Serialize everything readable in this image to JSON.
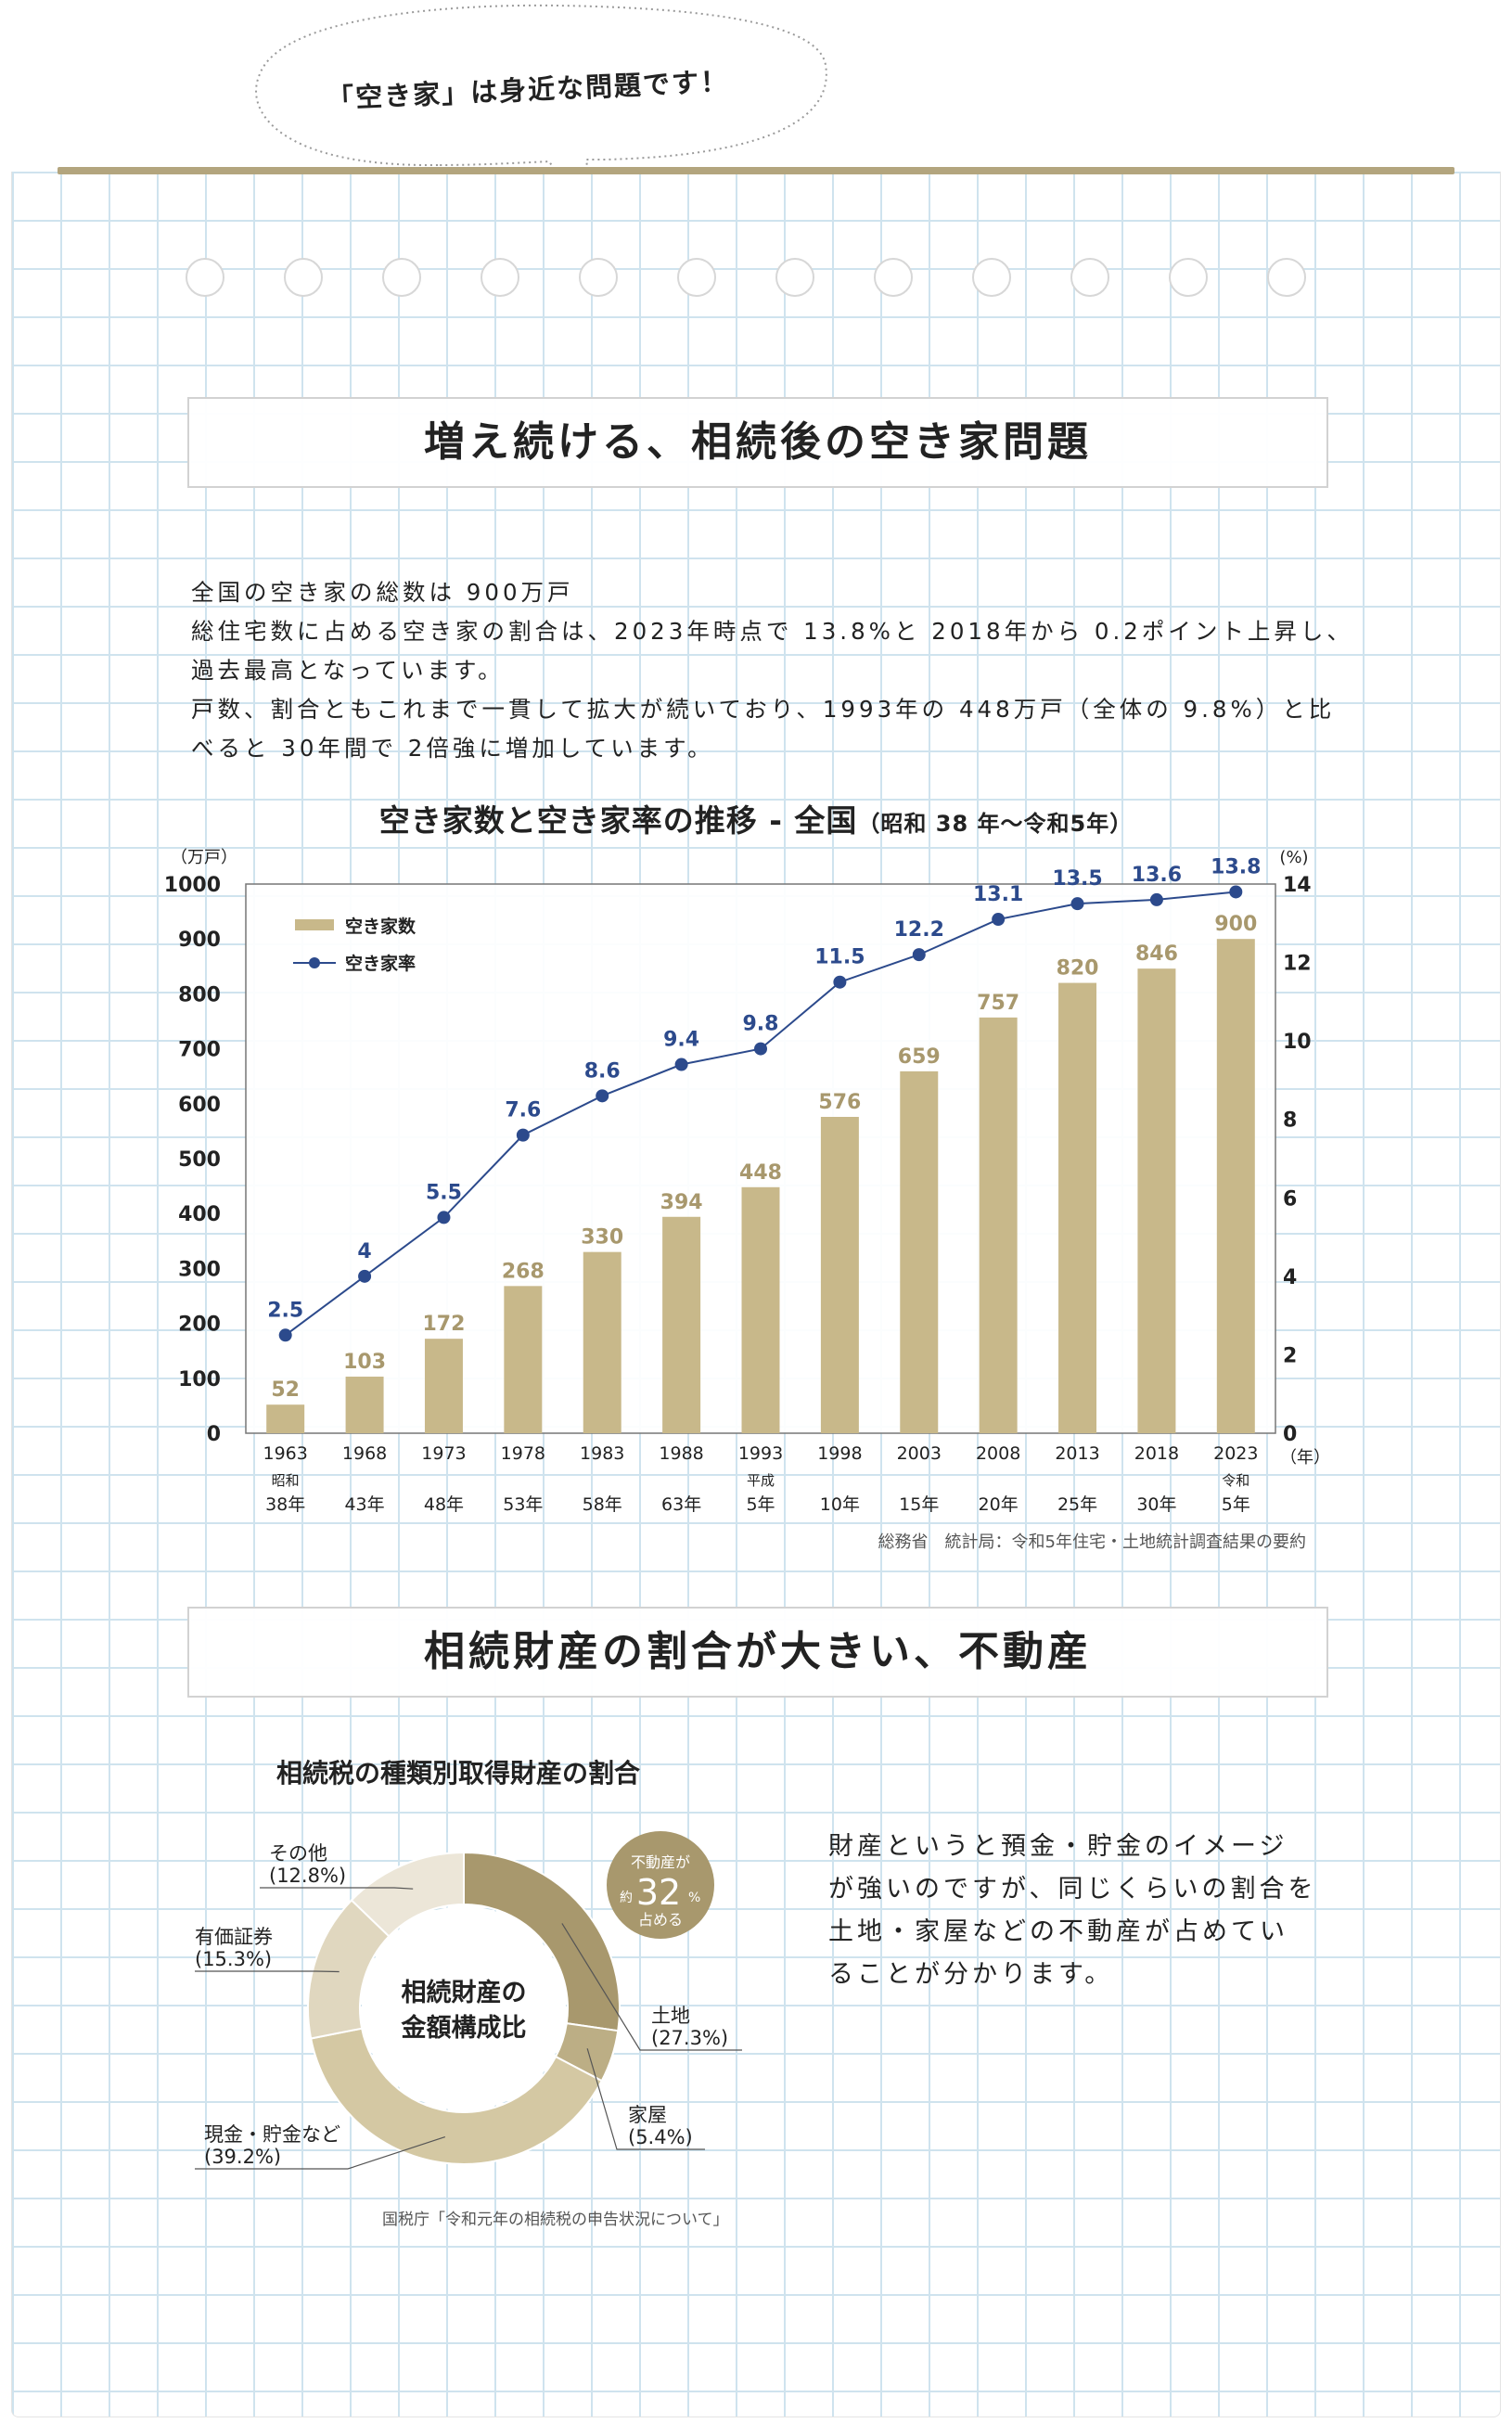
{
  "header": {
    "bubble_text": "「空き家」は身近な問題です！"
  },
  "section1": {
    "title": "増え続ける、相続後の空き家問題",
    "paragraph_lines": [
      "全国の空き家の総数は 900万戸",
      "総住宅数に占める空き家の割合は、2023年時点で 13.8%と 2018年から 0.2ポイント上昇し、",
      "過去最高となっています。",
      "戸数、割合ともこれまで一貫して拡大が続いており、1993年の 448万戸（全体の 9.8%）と比",
      "べると 30年間で 2倍強に増加しています。"
    ]
  },
  "section2": {
    "title": "相続財産の割合が大きい、不動産",
    "paragraph_lines": [
      "財産というと預金・貯金のイメージ",
      "が強いのですが、同じくらいの割合を",
      "土地・家屋などの不動産が占めてい",
      "ることが分かります。"
    ]
  },
  "chart_data": [
    {
      "type": "bar",
      "title": "空き家数と空き家率の推移 - 全国",
      "subtitle": "（昭和 38 年〜令和5年）",
      "categories": [
        "1963",
        "1968",
        "1973",
        "1978",
        "1983",
        "1988",
        "1993",
        "1998",
        "2003",
        "2008",
        "2013",
        "2018",
        "2023"
      ],
      "era_labels": [
        {
          "era": "昭和",
          "year": "38年"
        },
        {
          "era": "",
          "year": "43年"
        },
        {
          "era": "",
          "year": "48年"
        },
        {
          "era": "",
          "year": "53年"
        },
        {
          "era": "",
          "year": "58年"
        },
        {
          "era": "",
          "year": "63年"
        },
        {
          "era": "平成",
          "year": "5年"
        },
        {
          "era": "",
          "year": "10年"
        },
        {
          "era": "",
          "year": "15年"
        },
        {
          "era": "",
          "year": "20年"
        },
        {
          "era": "",
          "year": "25年"
        },
        {
          "era": "",
          "year": "30年"
        },
        {
          "era": "令和",
          "year": "5年"
        }
      ],
      "series": [
        {
          "name": "空き家数",
          "type": "bar",
          "axis": "left",
          "values": [
            52,
            103,
            172,
            268,
            330,
            394,
            448,
            576,
            659,
            757,
            820,
            846,
            900
          ],
          "labels": [
            "52",
            "103",
            "172",
            "268",
            "330",
            "394",
            "448",
            "576",
            "659",
            "757",
            "820",
            "846",
            "900"
          ],
          "color": "#c8b88a"
        },
        {
          "name": "空き家率",
          "type": "line",
          "axis": "right",
          "values": [
            2.5,
            4,
            5.5,
            7.6,
            8.6,
            9.4,
            9.8,
            11.5,
            12.2,
            13.1,
            13.5,
            13.6,
            13.8
          ],
          "labels": [
            "2.5",
            "4",
            "5.5",
            "7.6",
            "8.6",
            "9.4",
            "9.8",
            "11.5",
            "12.2",
            "13.1",
            "13.5",
            "13.6",
            "13.8"
          ],
          "color": "#2c4a8c"
        }
      ],
      "ylabel_left": "（万戸）",
      "ylabel_right": "(%)",
      "xlabel": "（年）",
      "ylim_left": [
        0,
        1000
      ],
      "yticks_left": [
        "0",
        "100",
        "200",
        "300",
        "400",
        "500",
        "600",
        "700",
        "800",
        "900",
        "1000"
      ],
      "ylim_right": [
        0,
        14
      ],
      "yticks_right": [
        "0",
        "2",
        "4",
        "6",
        "8",
        "10",
        "12",
        "14"
      ],
      "legend_position": "top-left",
      "source": "総務省　統計局：令和5年住宅・土地統計調査結果の要約",
      "grid": false
    },
    {
      "type": "pie",
      "title": "相続税の種類別取得財産の割合",
      "center_label_lines": [
        "相続財産の",
        "金額構成比"
      ],
      "slices": [
        {
          "label": "土地",
          "value": 27.3,
          "pct_label": "(27.3%)",
          "color": "#a8986d"
        },
        {
          "label": "家屋",
          "value": 5.4,
          "pct_label": "(5.4%)",
          "color": "#bcae85"
        },
        {
          "label": "現金・貯金など",
          "value": 39.2,
          "pct_label": "(39.2%)",
          "color": "#d4c8a3"
        },
        {
          "label": "有価証券",
          "value": 15.3,
          "pct_label": "(15.3%)",
          "color": "#e0d7bf"
        },
        {
          "label": "その他",
          "value": 12.8,
          "pct_label": "(12.8%)",
          "color": "#ece6d8"
        }
      ],
      "callout": {
        "line1": "不動産が",
        "prefix": "約",
        "number": "32",
        "unit": "%",
        "line3": "占める",
        "color": "#a8986d"
      },
      "source": "国税庁「令和元年の相続税の申告状況について」"
    }
  ]
}
